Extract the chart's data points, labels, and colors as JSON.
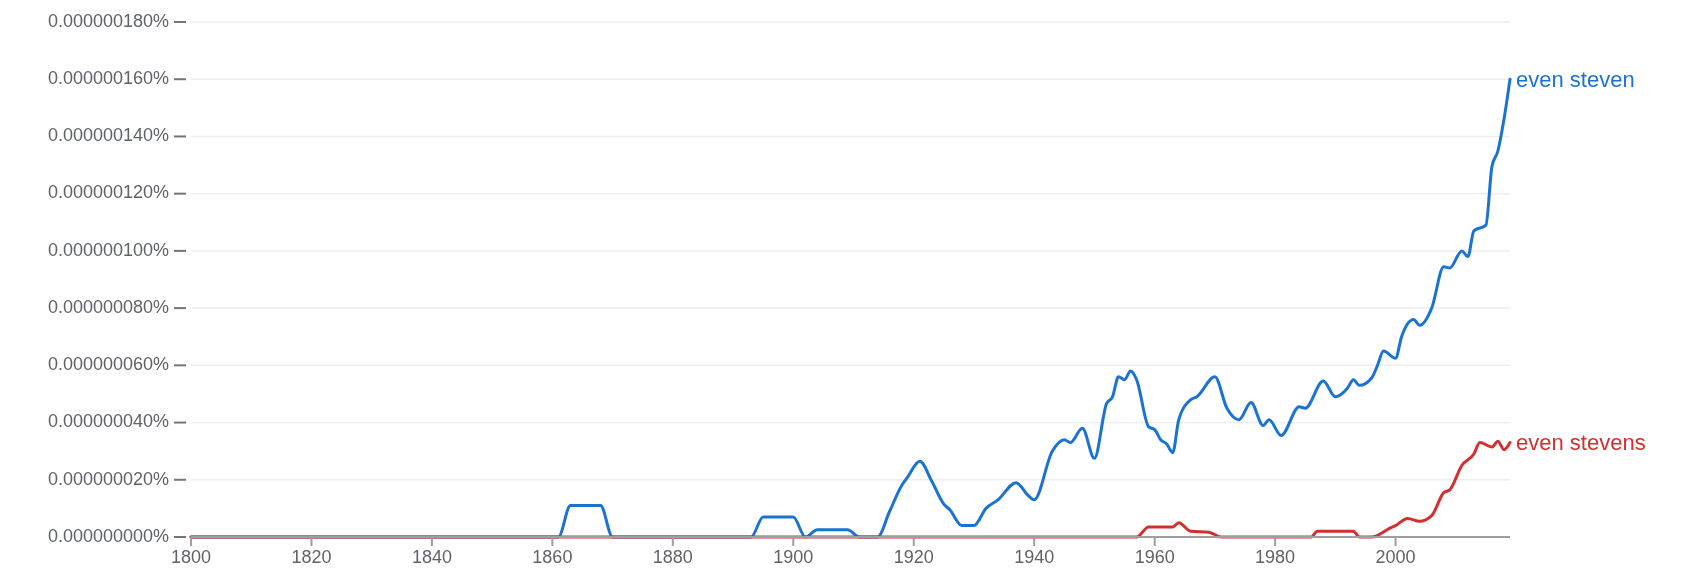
{
  "chart_data": {
    "type": "line",
    "xlim": [
      1800,
      2019
    ],
    "xticks": [
      1800,
      1820,
      1840,
      1860,
      1880,
      1900,
      1920,
      1940,
      1960,
      1980,
      2000
    ],
    "ylim": [
      0,
      1.8e-07
    ],
    "yticks": [
      {
        "value": 0,
        "label": "0.000000000%"
      },
      {
        "value": 2e-08,
        "label": "0.000000020%"
      },
      {
        "value": 4e-08,
        "label": "0.000000040%"
      },
      {
        "value": 6e-08,
        "label": "0.000000060%"
      },
      {
        "value": 8e-08,
        "label": "0.000000080%"
      },
      {
        "value": 1e-07,
        "label": "0.000000100%"
      },
      {
        "value": 1.2e-07,
        "label": "0.000000120%"
      },
      {
        "value": 1.4e-07,
        "label": "0.000000140%"
      },
      {
        "value": 1.6e-07,
        "label": "0.000000160%"
      },
      {
        "value": 1.8e-07,
        "label": "0.000000180%"
      }
    ],
    "grid": "y",
    "marker": "none",
    "line_style": "solid",
    "series": [
      {
        "name": "even steven",
        "color": "#1a73d3",
        "x": [
          1800,
          1861,
          1863,
          1868,
          1870,
          1893,
          1895,
          1900,
          1902,
          1904,
          1909,
          1911,
          1914,
          1916,
          1918,
          1919,
          1921,
          1923,
          1925,
          1926,
          1928,
          1930,
          1932,
          1934,
          1937,
          1939,
          1940,
          1943,
          1945,
          1946,
          1948,
          1950,
          1952,
          1953,
          1954,
          1955,
          1956,
          1957,
          1959,
          1960,
          1961,
          1962,
          1963,
          1964,
          1966,
          1967,
          1970,
          1972,
          1974,
          1976,
          1978,
          1979,
          1981,
          1984,
          1985,
          1988,
          1990,
          1992,
          1993,
          1994,
          1996,
          1997,
          1998,
          2000,
          2001,
          2003,
          2004,
          2006,
          2008,
          2009,
          2011,
          2012,
          2013,
          2015,
          2016,
          2017,
          2018,
          2019
        ],
        "values": [
          0,
          0,
          1.1e-08,
          1.1e-08,
          0,
          0,
          7e-09,
          7e-09,
          0,
          2.5e-09,
          2.5e-09,
          0,
          0,
          9e-09,
          1.8e-08,
          2.1e-08,
          2.65e-08,
          1.95e-08,
          1.15e-08,
          9.5e-09,
          4e-09,
          4e-09,
          1e-08,
          1.3e-08,
          1.9e-08,
          1.45e-08,
          1.3e-08,
          3e-08,
          3.4e-08,
          3.3e-08,
          3.8e-08,
          2.75e-08,
          4.65e-08,
          4.9e-08,
          5.6e-08,
          5.5e-08,
          5.8e-08,
          5.5e-08,
          3.85e-08,
          3.75e-08,
          3.4e-08,
          3.25e-08,
          2.95e-08,
          4.1e-08,
          4.8e-08,
          4.9e-08,
          5.6e-08,
          4.5e-08,
          4.1e-08,
          4.7e-08,
          3.9e-08,
          4.1e-08,
          3.55e-08,
          4.55e-08,
          4.5e-08,
          5.45e-08,
          4.9e-08,
          5.2e-08,
          5.5e-08,
          5.3e-08,
          5.55e-08,
          6e-08,
          6.5e-08,
          6.25e-08,
          7e-08,
          7.6e-08,
          7.4e-08,
          8e-08,
          9.45e-08,
          9.4e-08,
          1e-07,
          9.8e-08,
          1.07e-07,
          1.09e-07,
          1.295e-07,
          1.35e-07,
          1.46e-07,
          1.6e-07
        ]
      },
      {
        "name": "even stevens",
        "color": "#d32f2f",
        "x": [
          1800,
          1957,
          1959,
          1963,
          1964,
          1966,
          1969,
          1971,
          1986,
          1987,
          1993,
          1994,
          1996,
          1999,
          2000,
          2002,
          2004,
          2006,
          2008,
          2009,
          2011,
          2013,
          2014,
          2016,
          2017,
          2018,
          2019
        ],
        "values": [
          0,
          0,
          3.5e-09,
          3.5e-09,
          5e-09,
          2e-09,
          1.7e-09,
          0,
          0,
          2e-09,
          2e-09,
          0,
          0,
          3e-09,
          4e-09,
          6.5e-09,
          5.5e-09,
          7.5e-09,
          1.55e-08,
          1.65e-08,
          2.5e-08,
          2.9e-08,
          3.3e-08,
          3.15e-08,
          3.35e-08,
          3.05e-08,
          3.3e-08
        ]
      }
    ]
  }
}
